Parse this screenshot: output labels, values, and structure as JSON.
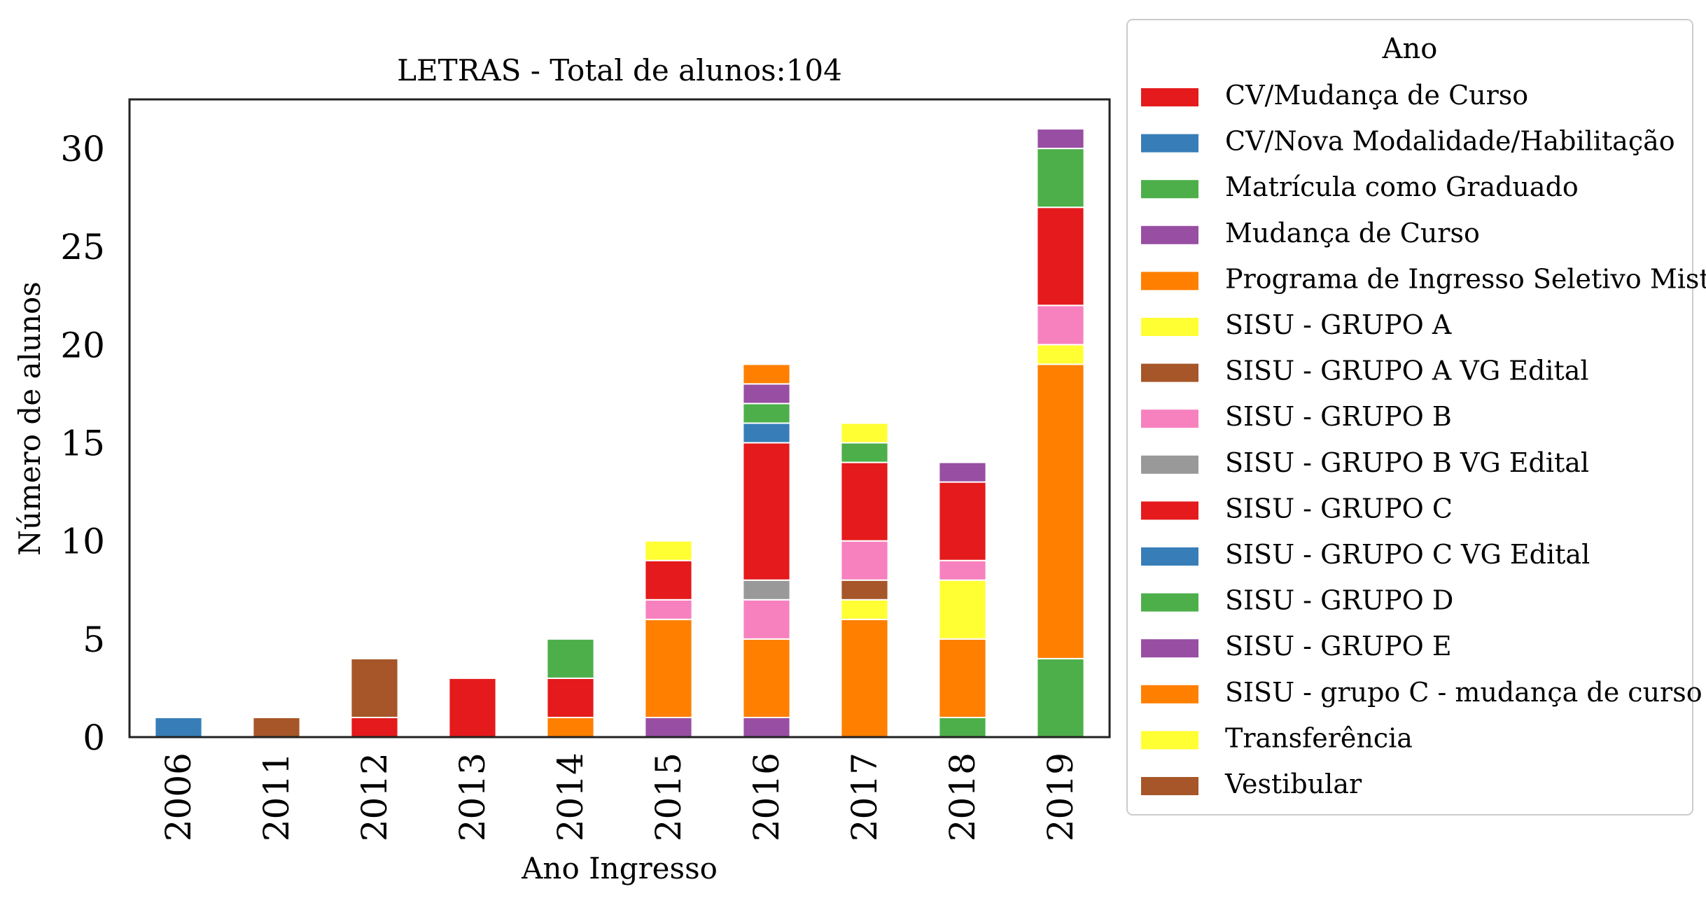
{
  "chart_data": {
    "type": "bar",
    "stacked": true,
    "title": "LETRAS - Total de alunos:104",
    "xlabel": "Ano Ingresso",
    "ylabel": "Número de alunos",
    "ylim": [
      0,
      32.5
    ],
    "yticks": [
      0,
      5,
      10,
      15,
      20,
      25,
      30
    ],
    "categories": [
      "2006",
      "2011",
      "2012",
      "2013",
      "2014",
      "2015",
      "2016",
      "2017",
      "2018",
      "2019"
    ],
    "legend": {
      "title": "Ano",
      "position": "right-outside"
    },
    "grid": false,
    "series": [
      {
        "name": "CV/Mudança de Curso",
        "color": "#e41a1c",
        "values": [
          0,
          0,
          0,
          0,
          0,
          0,
          0,
          0,
          0,
          0
        ]
      },
      {
        "name": "CV/Nova Modalidade/Habilitação",
        "color": "#377eb8",
        "values": [
          0,
          0,
          0,
          0,
          0,
          0,
          0,
          0,
          0,
          0
        ]
      },
      {
        "name": "Matrícula como Graduado",
        "color": "#4daf4a",
        "values": [
          0,
          0,
          0,
          0,
          0,
          0,
          0,
          0,
          1,
          4
        ]
      },
      {
        "name": "Mudança de Curso",
        "color": "#984ea3",
        "values": [
          0,
          0,
          0,
          0,
          0,
          1,
          1,
          0,
          0,
          0
        ]
      },
      {
        "name": "Programa de Ingresso Seletivo Misto",
        "color": "#ff7f00",
        "values": [
          0,
          0,
          0,
          0,
          1,
          5,
          4,
          6,
          4,
          15
        ]
      },
      {
        "name": "SISU - GRUPO A",
        "color": "#ffff33",
        "values": [
          0,
          0,
          0,
          0,
          0,
          0,
          0,
          1,
          3,
          1
        ]
      },
      {
        "name": "SISU - GRUPO A VG Edital",
        "color": "#a65628",
        "values": [
          0,
          0,
          0,
          0,
          0,
          0,
          0,
          1,
          0,
          0
        ]
      },
      {
        "name": "SISU - GRUPO B",
        "color": "#f781bf",
        "values": [
          0,
          0,
          0,
          0,
          0,
          1,
          2,
          2,
          1,
          2
        ]
      },
      {
        "name": "SISU - GRUPO B VG Edital",
        "color": "#999999",
        "values": [
          0,
          0,
          0,
          0,
          0,
          0,
          1,
          0,
          0,
          0
        ]
      },
      {
        "name": "SISU - GRUPO C",
        "color": "#e41a1c",
        "values": [
          0,
          0,
          1,
          3,
          2,
          2,
          7,
          4,
          4,
          5
        ]
      },
      {
        "name": "SISU - GRUPO C VG Edital",
        "color": "#377eb8",
        "values": [
          1,
          0,
          0,
          0,
          0,
          0,
          1,
          0,
          0,
          0
        ]
      },
      {
        "name": "SISU - GRUPO D",
        "color": "#4daf4a",
        "values": [
          0,
          0,
          0,
          0,
          2,
          0,
          1,
          1,
          0,
          3
        ]
      },
      {
        "name": "SISU - GRUPO E",
        "color": "#984ea3",
        "values": [
          0,
          0,
          0,
          0,
          0,
          0,
          1,
          0,
          1,
          1
        ]
      },
      {
        "name": "SISU - grupo C - mudança de curso",
        "color": "#ff7f00",
        "values": [
          0,
          0,
          0,
          0,
          0,
          0,
          1,
          0,
          0,
          0
        ]
      },
      {
        "name": "Transferência",
        "color": "#ffff33",
        "values": [
          0,
          0,
          0,
          0,
          0,
          1,
          0,
          1,
          0,
          0
        ]
      },
      {
        "name": "Vestibular",
        "color": "#a65628",
        "values": [
          0,
          1,
          3,
          0,
          0,
          0,
          0,
          0,
          0,
          0
        ]
      }
    ]
  }
}
